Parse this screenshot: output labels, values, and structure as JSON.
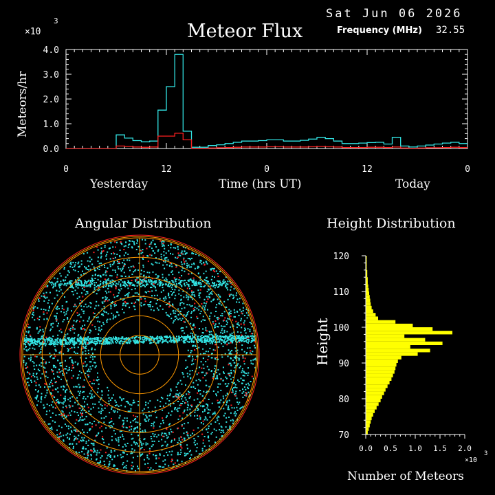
{
  "header": {
    "date": "Sat Jun 06 2026",
    "frequency_label": "Frequency (MHz)",
    "frequency_value": "32.55"
  },
  "colors": {
    "cyan": "#33e6e6",
    "red": "#ff2020",
    "yellow": "#ffff00",
    "orange": "#ff9900",
    "axis": "#ffffff",
    "background": "#000000"
  },
  "chart_data": [
    {
      "type": "line",
      "title": "Meteor Flux",
      "ylabel": "Meteors/hr",
      "xlabel": "Time (hrs UT)",
      "y_multiplier_label": "×10",
      "y_multiplier_exp": "3",
      "ylim": [
        0,
        4.0
      ],
      "yticks": [
        "0.0",
        "1.0",
        "2.0",
        "3.0",
        "4.0"
      ],
      "xlim": [
        0,
        48
      ],
      "xticks": [
        "0",
        "12",
        "0",
        "12",
        "0"
      ],
      "day_labels": [
        "Yesterday",
        "Today"
      ],
      "x": [
        0,
        1,
        2,
        3,
        4,
        5,
        6,
        7,
        8,
        9,
        10,
        11,
        12,
        13,
        14,
        15,
        16,
        17,
        18,
        19,
        20,
        21,
        22,
        23,
        24,
        25,
        26,
        27,
        28,
        29,
        30,
        31,
        32,
        33,
        34,
        35,
        36,
        37,
        38,
        39,
        40,
        41,
        42,
        43,
        44,
        45,
        46,
        47
      ],
      "series": [
        {
          "color": "cyan",
          "values": [
            0,
            0,
            0,
            0,
            0,
            0,
            0.55,
            0.42,
            0.32,
            0.27,
            0.3,
            1.55,
            2.5,
            3.8,
            0.7,
            0.05,
            0.05,
            0.12,
            0.15,
            0.2,
            0.25,
            0.3,
            0.3,
            0.32,
            0.35,
            0.35,
            0.3,
            0.3,
            0.33,
            0.38,
            0.45,
            0.4,
            0.3,
            0.2,
            0.2,
            0.22,
            0.24,
            0.25,
            0.18,
            0.45,
            0.1,
            0.06,
            0.1,
            0.14,
            0.18,
            0.22,
            0.25,
            0.2
          ]
        },
        {
          "color": "red",
          "values": [
            0,
            0,
            0,
            0,
            0,
            0,
            0.1,
            0.08,
            0.06,
            0.05,
            0.06,
            0.5,
            0.5,
            0.62,
            0.35,
            0.01,
            0.01,
            0.02,
            0.03,
            0.04,
            0.05,
            0.06,
            0.06,
            0.06,
            0.07,
            0.07,
            0.06,
            0.06,
            0.06,
            0.07,
            0.08,
            0.07,
            0.06,
            0.04,
            0.04,
            0.04,
            0.05,
            0.05,
            0.04,
            0.06,
            0.02,
            0.01,
            0.02,
            0.03,
            0.03,
            0.04,
            0.05,
            0.04
          ]
        }
      ]
    },
    {
      "type": "scatter",
      "title": "Angular Distribution",
      "rings": 6
    },
    {
      "type": "bar",
      "title": "Height Distribution",
      "ylabel": "Height",
      "xlabel": "Number of Meteors",
      "x_multiplier_label": "×10",
      "x_multiplier_exp": "3",
      "ylim": [
        70,
        120
      ],
      "yticks": [
        "70",
        "80",
        "90",
        "100",
        "110",
        "120"
      ],
      "xlim": [
        0,
        2.0
      ],
      "xticks": [
        "0.0",
        "0.5",
        "1.0",
        "1.5",
        "2.0"
      ],
      "heights": [
        70,
        71,
        72,
        73,
        74,
        75,
        76,
        77,
        78,
        79,
        80,
        81,
        82,
        83,
        84,
        85,
        86,
        87,
        88,
        89,
        90,
        91,
        92,
        93,
        94,
        95,
        96,
        97,
        98,
        99,
        100,
        101,
        102,
        103,
        104,
        105,
        106,
        107,
        108,
        109,
        110,
        111,
        112,
        113,
        114,
        115,
        116,
        117,
        118,
        119
      ],
      "values": [
        0.04,
        0.06,
        0.08,
        0.1,
        0.12,
        0.15,
        0.18,
        0.22,
        0.26,
        0.3,
        0.33,
        0.37,
        0.4,
        0.44,
        0.48,
        0.52,
        0.55,
        0.58,
        0.6,
        0.62,
        0.65,
        0.72,
        1.05,
        1.3,
        0.9,
        1.55,
        1.2,
        0.78,
        1.75,
        1.35,
        0.95,
        0.6,
        0.25,
        0.2,
        0.15,
        0.12,
        0.1,
        0.09,
        0.08,
        0.07,
        0.06,
        0.05,
        0.04,
        0.04,
        0.03,
        0.03,
        0.02,
        0.02,
        0.02,
        0.02
      ]
    }
  ]
}
